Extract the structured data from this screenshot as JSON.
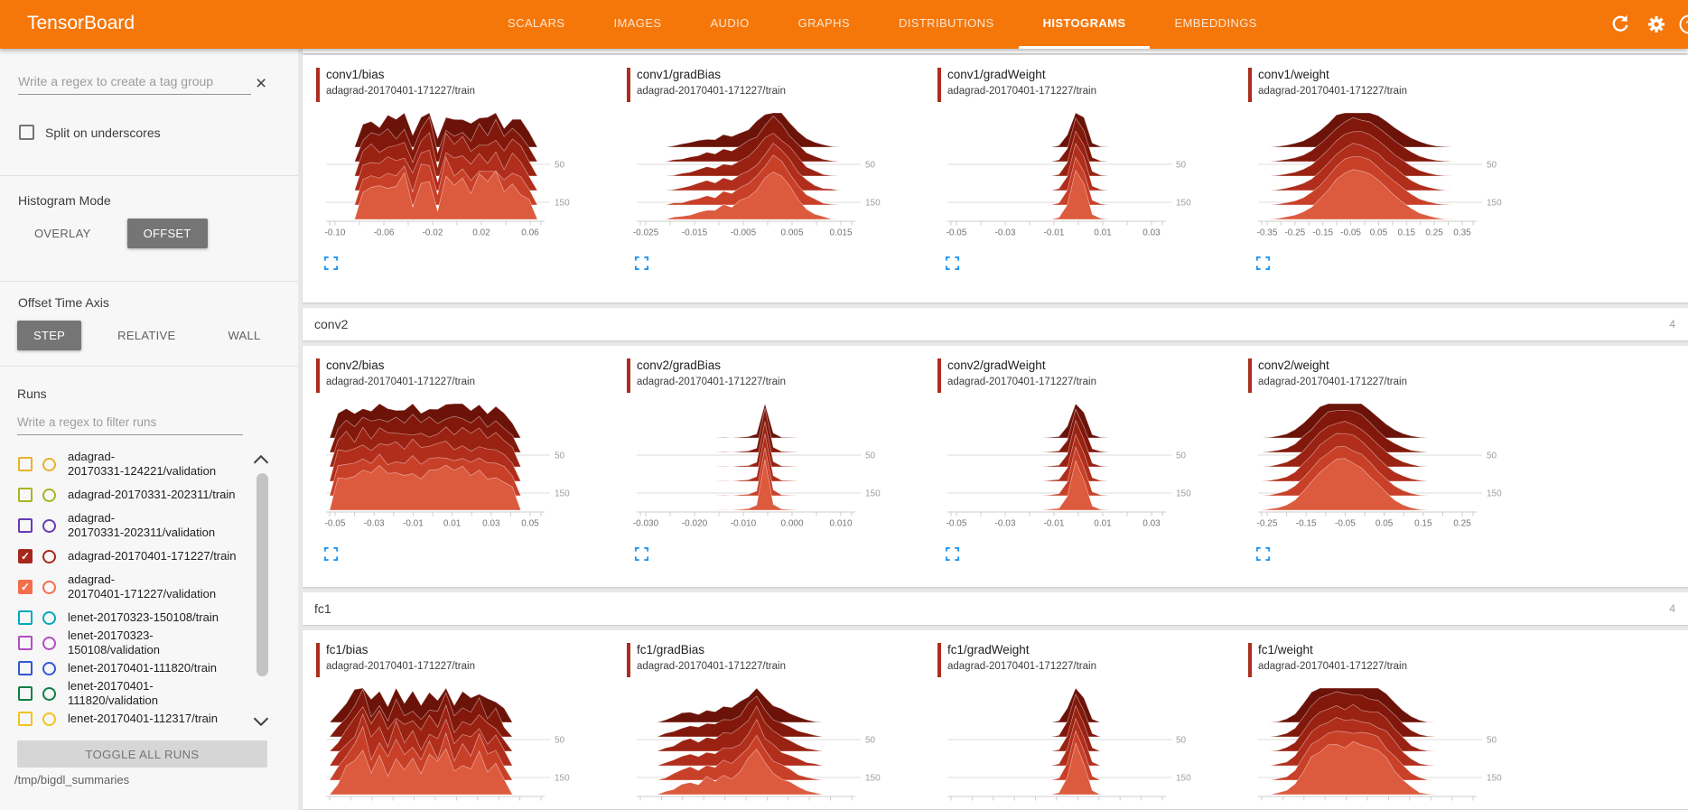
{
  "header": {
    "title": "TensorBoard",
    "tabs": [
      {
        "label": "SCALARS",
        "active": false
      },
      {
        "label": "IMAGES",
        "active": false
      },
      {
        "label": "AUDIO",
        "active": false
      },
      {
        "label": "GRAPHS",
        "active": false
      },
      {
        "label": "DISTRIBUTIONS",
        "active": false
      },
      {
        "label": "HISTOGRAMS",
        "active": true
      },
      {
        "label": "EMBEDDINGS",
        "active": false
      }
    ],
    "icons": [
      "refresh-icon",
      "settings-icon",
      "help-icon"
    ]
  },
  "sidebar": {
    "tag_filter_placeholder": "Write a regex to create a tag group",
    "clear_icon": "×",
    "split_label": "Split on underscores",
    "histogram_mode_label": "Histogram Mode",
    "histogram_mode_options": [
      "OVERLAY",
      "OFFSET"
    ],
    "histogram_mode_selected": "OFFSET",
    "offset_axis_label": "Offset Time Axis",
    "offset_axis_options": [
      "STEP",
      "RELATIVE",
      "WALL"
    ],
    "offset_axis_selected": "STEP",
    "runs_label": "Runs",
    "runs_filter_placeholder": "Write a regex to filter runs",
    "runs": [
      {
        "lines": [
          "adagrad-",
          "20170331-124221/validation"
        ],
        "color": "#e8b22c",
        "checked": false
      },
      {
        "lines": [
          "adagrad-20170331-202311/train"
        ],
        "color": "#a7b421",
        "checked": false
      },
      {
        "lines": [
          "adagrad-",
          "20170331-202311/validation"
        ],
        "color": "#673ab7",
        "checked": false
      },
      {
        "lines": [
          "adagrad-20170401-171227/train"
        ],
        "color": "#a6281c",
        "checked": true
      },
      {
        "lines": [
          "adagrad-",
          "20170401-171227/validation"
        ],
        "color": "#f26e4d",
        "checked": true
      },
      {
        "lines": [
          "lenet-20170323-150108/train"
        ],
        "color": "#00a9bd",
        "checked": false
      },
      {
        "lines": [
          "lenet-20170323-150108/validation"
        ],
        "color": "#b14ec2",
        "checked": false
      },
      {
        "lines": [
          "lenet-20170401-111820/train"
        ],
        "color": "#3356d6",
        "checked": false
      },
      {
        "lines": [
          "lenet-20170401-111820/validation"
        ],
        "color": "#0c8043",
        "checked": false
      },
      {
        "lines": [
          "lenet-20170401-112317/train"
        ],
        "color": "#f3c21c",
        "checked": false
      }
    ],
    "toggle_all_label": "TOGGLE ALL RUNS",
    "logdir": "/tmp/bigdl_summaries"
  },
  "main": {
    "groups": [
      {
        "name": "conv1",
        "header_visible": false
      },
      {
        "name": "conv2",
        "count": "4",
        "header_visible": true
      },
      {
        "name": "fc1",
        "count": "4",
        "header_visible": true
      }
    ]
  },
  "colors": {
    "header_bg": "#f5770a",
    "accent_bar": "#ae2d1c",
    "ridge_palette": [
      "#6b1309",
      "#82180b",
      "#9a2212",
      "#b12e1c",
      "#c94029",
      "#dc5a3e"
    ],
    "expand_icon": "#2095f2",
    "gridline": "#dddddd",
    "axis": "#cccccc"
  },
  "chart_data": [
    {
      "type": "ridgeline-histogram",
      "group": "conv1",
      "title": "conv1/bias",
      "run": "adagrad-20170401-171227/train",
      "x_ticks": [
        "-0.10",
        "-0.06",
        "-0.02",
        "0.02",
        "0.06"
      ],
      "y_ticks": [
        "50",
        "150"
      ],
      "jitter": 0.2,
      "profile": [
        0,
        0,
        0,
        0,
        0.5,
        0.68,
        0.55,
        0.72,
        0.6,
        0.78,
        0.3,
        0.74,
        0.88,
        0.18,
        0.82,
        0.62,
        0.75,
        0.55,
        0.8,
        0.65,
        0.85,
        0.5,
        0.72,
        0.6,
        0.35,
        0
      ]
    },
    {
      "type": "ridgeline-histogram",
      "group": "conv1",
      "title": "conv1/gradBias",
      "run": "adagrad-20170401-171227/train",
      "x_ticks": [
        "-0.025",
        "-0.015",
        "-0.005",
        "0.005",
        "0.015"
      ],
      "y_ticks": [
        "50",
        "150"
      ],
      "jitter": 0.1,
      "profile": [
        0,
        0,
        0,
        0,
        0.03,
        0.06,
        0.1,
        0.15,
        0.2,
        0.17,
        0.28,
        0.24,
        0.35,
        0.45,
        0.6,
        0.8,
        1,
        0.85,
        0.6,
        0.4,
        0.22,
        0.12,
        0.05,
        0.02,
        0,
        0
      ]
    },
    {
      "type": "ridgeline-histogram",
      "group": "conv1",
      "title": "conv1/gradWeight",
      "run": "adagrad-20170401-171227/train",
      "x_ticks": [
        "-0.05",
        "-0.03",
        "-0.01",
        "0.01",
        "0.03"
      ],
      "y_ticks": [
        "50",
        "150"
      ],
      "jitter": 0.03,
      "profile": [
        0,
        0,
        0,
        0,
        0,
        0,
        0,
        0,
        0,
        0,
        0,
        0,
        0,
        0.04,
        0.3,
        1,
        0.7,
        0.1,
        0.02,
        0,
        0,
        0,
        0,
        0,
        0,
        0
      ]
    },
    {
      "type": "ridgeline-histogram",
      "group": "conv1",
      "title": "conv1/weight",
      "run": "adagrad-20170401-171227/train",
      "x_ticks": [
        "-0.35",
        "-0.25",
        "-0.15",
        "-0.05",
        "0.05",
        "0.15",
        "0.25",
        "0.35"
      ],
      "y_ticks": [
        "50",
        "150"
      ],
      "jitter": 0.03,
      "profile": [
        0,
        0,
        0.02,
        0.05,
        0.09,
        0.15,
        0.25,
        0.4,
        0.58,
        0.78,
        0.93,
        1,
        0.97,
        0.9,
        0.78,
        0.63,
        0.48,
        0.34,
        0.22,
        0.13,
        0.07,
        0.03,
        0.01,
        0,
        0,
        0
      ]
    },
    {
      "type": "ridgeline-histogram",
      "group": "conv2",
      "title": "conv2/bias",
      "run": "adagrad-20170401-171227/train",
      "x_ticks": [
        "-0.05",
        "-0.03",
        "-0.01",
        "0.01",
        "0.03",
        "0.05"
      ],
      "y_ticks": [
        "50",
        "150"
      ],
      "jitter": 0.14,
      "profile": [
        0,
        0.6,
        0.72,
        0.62,
        0.78,
        0.68,
        0.82,
        0.72,
        0.76,
        0.7,
        0.8,
        0.66,
        0.76,
        0.72,
        0.82,
        0.74,
        0.8,
        0.68,
        0.76,
        0.62,
        0.7,
        0.55,
        0.4,
        0,
        0,
        0
      ]
    },
    {
      "type": "ridgeline-histogram",
      "group": "conv2",
      "title": "conv2/gradBias",
      "run": "adagrad-20170401-171227/train",
      "x_ticks": [
        "-0.030",
        "-0.020",
        "-0.010",
        "0.000",
        "0.010"
      ],
      "y_ticks": [
        "50",
        "150"
      ],
      "jitter": 0.02,
      "profile": [
        0,
        0,
        0,
        0,
        0,
        0,
        0,
        0,
        0,
        0,
        0.01,
        0,
        0.02,
        0.03,
        0.1,
        1,
        0.12,
        0.02,
        0.01,
        0,
        0,
        0,
        0,
        0,
        0,
        0
      ]
    },
    {
      "type": "ridgeline-histogram",
      "group": "conv2",
      "title": "conv2/gradWeight",
      "run": "adagrad-20170401-171227/train",
      "x_ticks": [
        "-0.05",
        "-0.03",
        "-0.01",
        "0.01",
        "0.03"
      ],
      "y_ticks": [
        "50",
        "150"
      ],
      "jitter": 0.03,
      "profile": [
        0,
        0,
        0,
        0,
        0,
        0,
        0,
        0,
        0,
        0,
        0,
        0,
        0.02,
        0.04,
        0.28,
        1,
        0.6,
        0.08,
        0.02,
        0,
        0,
        0,
        0,
        0,
        0,
        0
      ]
    },
    {
      "type": "ridgeline-histogram",
      "group": "conv2",
      "title": "conv2/weight",
      "run": "adagrad-20170401-171227/train",
      "x_ticks": [
        "-0.25",
        "-0.15",
        "-0.05",
        "0.05",
        "0.15",
        "0.25"
      ],
      "y_ticks": [
        "50",
        "150"
      ],
      "jitter": 0.04,
      "profile": [
        0,
        0.02,
        0.05,
        0.1,
        0.2,
        0.36,
        0.55,
        0.75,
        0.9,
        0.98,
        1,
        0.95,
        0.85,
        0.68,
        0.5,
        0.33,
        0.2,
        0.11,
        0.05,
        0.02,
        0,
        0,
        0,
        0,
        0,
        0
      ]
    },
    {
      "type": "ridgeline-histogram",
      "group": "fc1",
      "title": "fc1/bias",
      "run": "adagrad-20170401-171227/train",
      "x_ticks": [],
      "y_ticks": [
        "50",
        "150"
      ],
      "jitter": 0.22,
      "profile": [
        0,
        0.25,
        0.5,
        0.7,
        1,
        0.55,
        0.8,
        0.45,
        0.85,
        0.5,
        0.65,
        0.4,
        0.75,
        0.55,
        0.85,
        0.45,
        0.7,
        0.55,
        0.8,
        0.5,
        0.6,
        0.3,
        0,
        0,
        0,
        0
      ]
    },
    {
      "type": "ridgeline-histogram",
      "group": "fc1",
      "title": "fc1/gradBias",
      "run": "adagrad-20170401-171227/train",
      "x_ticks": [],
      "y_ticks": [
        "50",
        "150"
      ],
      "jitter": 0.13,
      "profile": [
        0,
        0,
        0,
        0.06,
        0.12,
        0.2,
        0.26,
        0.2,
        0.32,
        0.27,
        0.4,
        0.36,
        0.5,
        0.68,
        1,
        0.6,
        0.42,
        0.3,
        0.22,
        0.14,
        0.08,
        0.03,
        0,
        0,
        0,
        0
      ]
    },
    {
      "type": "ridgeline-histogram",
      "group": "fc1",
      "title": "fc1/gradWeight",
      "run": "adagrad-20170401-171227/train",
      "x_ticks": [],
      "y_ticks": [
        "50",
        "150"
      ],
      "jitter": 0.03,
      "profile": [
        0,
        0,
        0,
        0,
        0,
        0,
        0,
        0,
        0,
        0,
        0,
        0,
        0,
        0.04,
        0.35,
        1,
        0.6,
        0.08,
        0,
        0,
        0,
        0,
        0,
        0,
        0,
        0
      ]
    },
    {
      "type": "ridgeline-histogram",
      "group": "fc1",
      "title": "fc1/weight",
      "run": "adagrad-20170401-171227/train",
      "x_ticks": [],
      "y_ticks": [
        "50",
        "150"
      ],
      "jitter": 0.07,
      "profile": [
        0,
        0,
        0.03,
        0.08,
        0.2,
        0.45,
        0.7,
        0.88,
        0.96,
        1,
        0.97,
        0.99,
        0.95,
        0.92,
        0.85,
        0.7,
        0.5,
        0.3,
        0.14,
        0.05,
        0.01,
        0,
        0,
        0,
        0,
        0
      ]
    }
  ]
}
